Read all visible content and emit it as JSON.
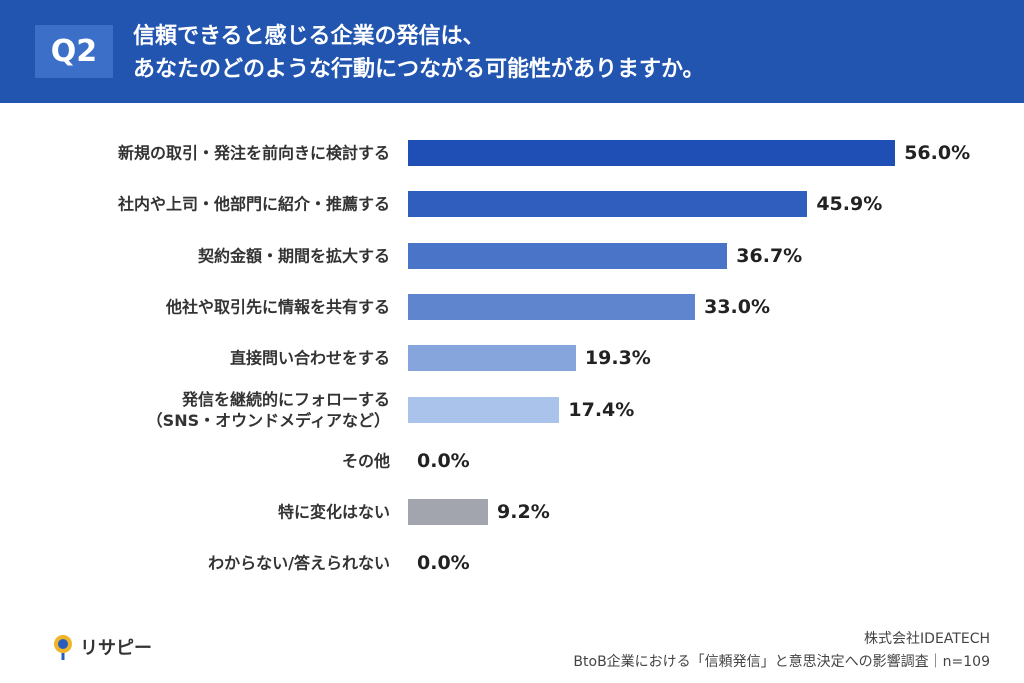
{
  "header": {
    "badge": "Q2",
    "title": "信頼できると感じる企業の発信は、\nあなたのどのような行動につながる可能性がありますか。"
  },
  "chart_data": {
    "type": "bar",
    "orientation": "horizontal",
    "categories": [
      "新規の取引・発注を前向きに検討する",
      "社内や上司・他部門に紹介・推薦する",
      "契約金額・期間を拡大する",
      "他社や取引先に情報を共有する",
      "直接問い合わせをする",
      "発信を継続的にフォローする\n（SNS・オウンドメディアなど）",
      "その他",
      "特に変化はない",
      "わからない/答えられない"
    ],
    "values": [
      56.0,
      45.9,
      36.7,
      33.0,
      19.3,
      17.4,
      0.0,
      9.2,
      0.0
    ],
    "value_labels": [
      "56.0%",
      "45.9%",
      "36.7%",
      "33.0%",
      "19.3%",
      "17.4%",
      "0.0%",
      "9.2%",
      "0.0%"
    ],
    "colors": [
      "#1f4fb4",
      "#2f5ebf",
      "#4a74c8",
      "#5f85ce",
      "#86a5dc",
      "#aac3ea",
      "#c5d5f0",
      "#a2a5ae",
      "#cccccc"
    ]
  },
  "footer": {
    "logo": "リサピー",
    "company": "株式会社IDEATECH",
    "survey": "BtoB企業における「信頼発信」と意思決定への影響調査｜n=109"
  }
}
